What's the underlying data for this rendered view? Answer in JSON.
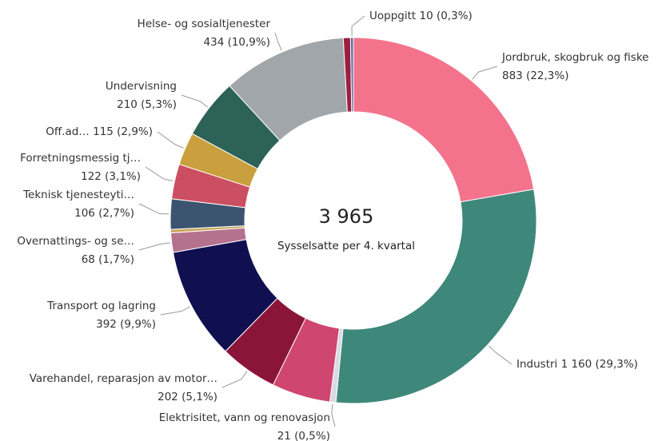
{
  "chart_data": {
    "type": "donut",
    "center_text": "3 965",
    "center_subtitle": "Sysselsatte per 4. kvartal",
    "categories": [
      "Jordbruk, skogbruk og fiske",
      "Industri",
      "Elektrisitet, vann og renovasjon",
      null,
      "Varehandel, reparasjon av motor…",
      "Transport og lagring",
      "Overnattings- og se…",
      null,
      "Teknisk tjenesteyti…",
      "Forretningsmessig tj…",
      "Off.ad…",
      "Undervisning",
      "Helse- og sosialtjenester",
      null,
      "Uoppgitt"
    ],
    "values": [
      883,
      1160,
      21,
      205,
      202,
      392,
      68,
      12,
      106,
      122,
      115,
      210,
      434,
      25,
      10
    ],
    "value_labels": [
      "883 (22,3%)",
      "1 160 (29,3%)",
      "21 (0,5%)",
      null,
      "202 (5,1%)",
      "392 (9,9%)",
      "68 (1,7%)",
      null,
      "106 (2,7%)",
      "122 (3,1%)",
      "115 (2,9%)",
      "210 (5,3%)",
      "434 (10,9%)",
      null,
      "10 (0,3%)"
    ],
    "colors": [
      "#f3738c",
      "#3e887b",
      "#d9dae3",
      "#cf4670",
      "#8b1539",
      "#100f50",
      "#b5728f",
      "#c9a55a",
      "#3d5470",
      "#cb4f60",
      "#c9a03d",
      "#2d6258",
      "#a1a6aa",
      "#9b1e42",
      "#5a6ea3"
    ]
  }
}
